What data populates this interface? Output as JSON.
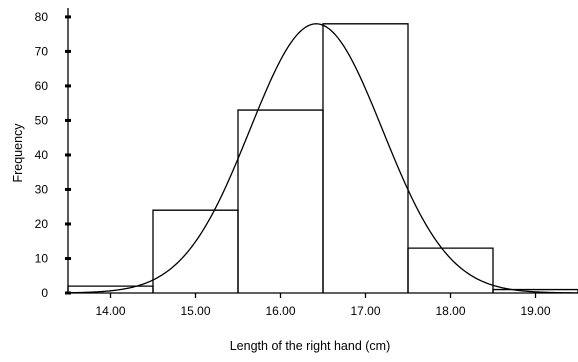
{
  "chart_data": {
    "type": "bar",
    "title": "",
    "xlabel": "Length of the right hand (cm)",
    "ylabel": "Frequency",
    "xlim": [
      13.5,
      19.5
    ],
    "ylim": [
      0,
      82
    ],
    "x_ticks": [
      "14.00",
      "15.00",
      "16.00",
      "17.00",
      "18.00",
      "19.00"
    ],
    "y_ticks": [
      "0",
      "10",
      "20",
      "30",
      "40",
      "50",
      "60",
      "70",
      "80"
    ],
    "bins": [
      {
        "from": 13.5,
        "to": 14.5,
        "value": 2
      },
      {
        "from": 14.5,
        "to": 15.5,
        "value": 24
      },
      {
        "from": 15.5,
        "to": 16.5,
        "value": 53
      },
      {
        "from": 16.5,
        "to": 17.5,
        "value": 78
      },
      {
        "from": 17.5,
        "to": 18.5,
        "value": 13
      },
      {
        "from": 18.5,
        "to": 19.5,
        "value": 1
      }
    ],
    "normal_curve": {
      "mean": 16.42,
      "sd": 0.78,
      "peak": 78
    },
    "grid": false,
    "legend": "none",
    "color": "#000000"
  }
}
